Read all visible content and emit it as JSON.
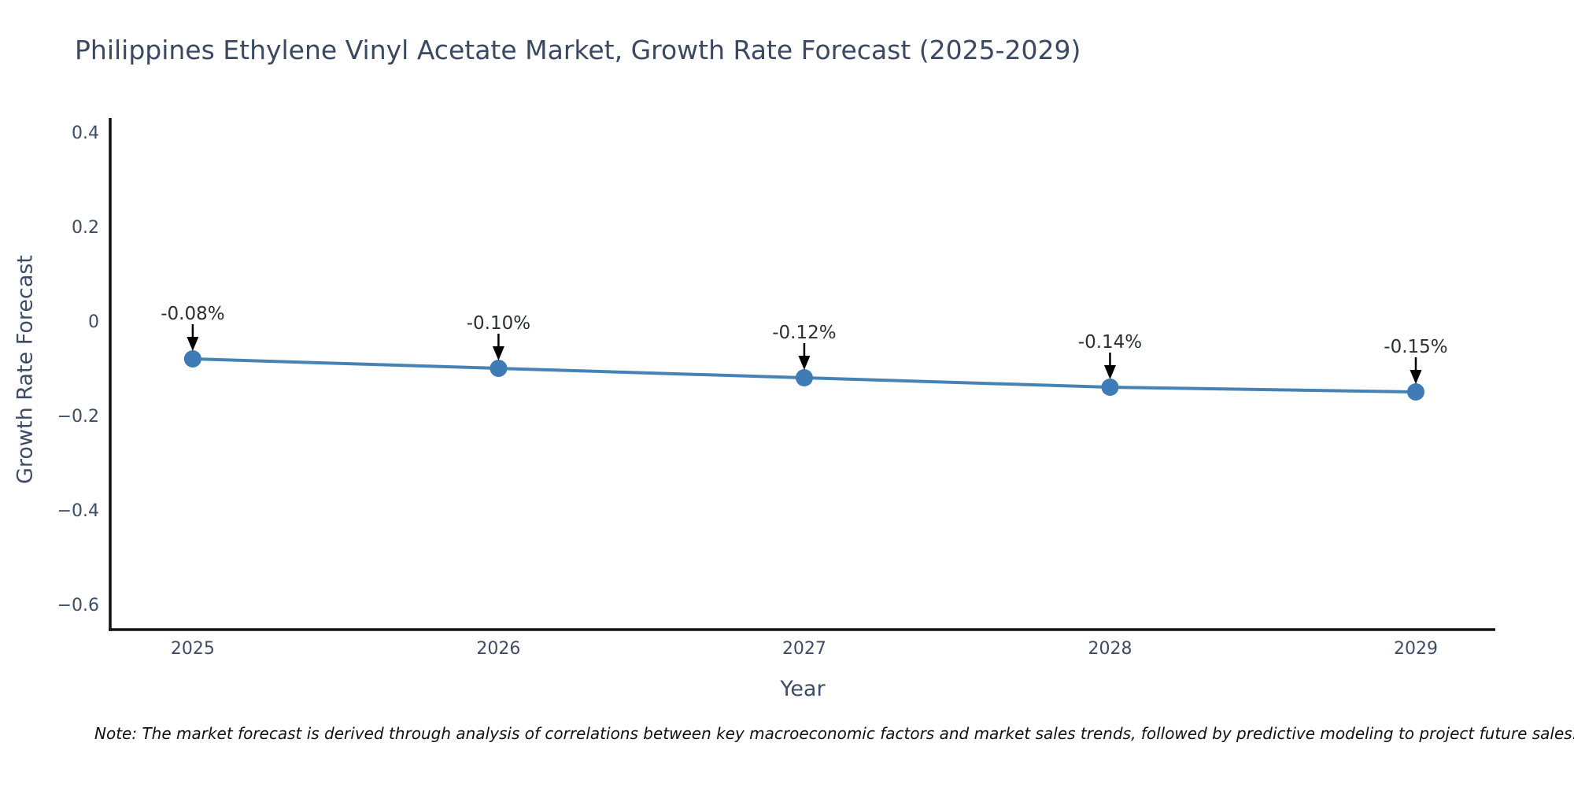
{
  "chart_data": {
    "type": "line",
    "title": "Philippines Ethylene Vinyl Acetate Market, Growth Rate Forecast (2025-2029)",
    "xlabel": "Year",
    "ylabel": "Growth Rate Forecast",
    "x": [
      2025,
      2026,
      2027,
      2028,
      2029
    ],
    "x_tick_labels": [
      "2025",
      "2026",
      "2027",
      "2028",
      "2029"
    ],
    "y": [
      -0.08,
      -0.1,
      -0.12,
      -0.14,
      -0.15
    ],
    "annotations": [
      "-0.08%",
      "-0.10%",
      "-0.12%",
      "-0.14%",
      "-0.15%"
    ],
    "y_ticks": [
      0.4,
      0.2,
      0,
      -0.2,
      -0.4,
      -0.6
    ],
    "y_tick_labels": [
      "0.4",
      "0.2",
      "0",
      "−0.2",
      "−0.4",
      "−0.6"
    ],
    "xlim": [
      2024.73,
      2029.26
    ],
    "ylim": [
      -0.6533,
      0.4267
    ],
    "grid": false,
    "legend": "none",
    "line_color": "#4682b4",
    "marker_color": "#3f7cb6",
    "axis_color": "#111111",
    "label_color": "#3e4c66",
    "annotation_color": "#2b2f33",
    "arrow_color": "#000000"
  },
  "note": {
    "text": "Note: The market forecast is derived through analysis of correlations between key macroeconomic factors and market sales trends, followed by predictive modeling to project future sales."
  }
}
